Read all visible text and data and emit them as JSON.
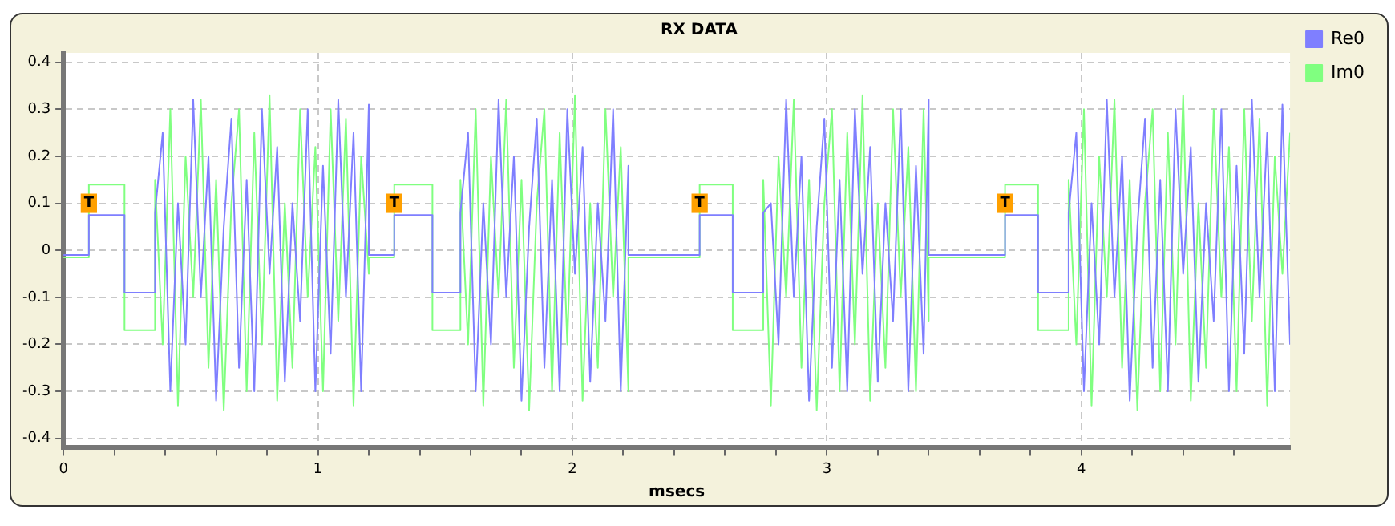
{
  "chart_data": {
    "type": "line",
    "title": "RX DATA",
    "xlabel": "msecs",
    "x": [
      0,
      0.1,
      0.1,
      0.24,
      0.24,
      0.36,
      0.36,
      0.39,
      0.42,
      0.45,
      0.48,
      0.51,
      0.54,
      0.57,
      0.6,
      0.63,
      0.66,
      0.69,
      0.72,
      0.75,
      0.78,
      0.81,
      0.84,
      0.87,
      0.9,
      0.93,
      0.96,
      0.99,
      1.02,
      1.05,
      1.08,
      1.11,
      1.14,
      1.17,
      1.2,
      1.2,
      1.3,
      1.3,
      1.45,
      1.45,
      1.56,
      1.56,
      1.59,
      1.62,
      1.65,
      1.68,
      1.71,
      1.74,
      1.77,
      1.8,
      1.83,
      1.86,
      1.89,
      1.92,
      1.95,
      1.98,
      2.01,
      2.04,
      2.07,
      2.1,
      2.13,
      2.16,
      2.19,
      2.22,
      2.22,
      2.5,
      2.5,
      2.63,
      2.63,
      2.75,
      2.75,
      2.78,
      2.81,
      2.84,
      2.87,
      2.9,
      2.93,
      2.96,
      2.99,
      3.02,
      3.05,
      3.08,
      3.11,
      3.14,
      3.17,
      3.2,
      3.23,
      3.26,
      3.29,
      3.32,
      3.35,
      3.38,
      3.4,
      3.4,
      3.7,
      3.7,
      3.83,
      3.83,
      3.95,
      3.95,
      3.98,
      4.01,
      4.04,
      4.07,
      4.1,
      4.13,
      4.16,
      4.19,
      4.22,
      4.25,
      4.28,
      4.31,
      4.34,
      4.37,
      4.4,
      4.43,
      4.46,
      4.49,
      4.52,
      4.55,
      4.58,
      4.61,
      4.64,
      4.67,
      4.7,
      4.73,
      4.76,
      4.79,
      4.82
    ],
    "series": [
      {
        "name": "Re0",
        "color": "#7f7fff",
        "values": [
          -0.01,
          -0.01,
          0.075,
          0.075,
          -0.09,
          -0.09,
          0.08,
          0.25,
          -0.3,
          0.1,
          -0.2,
          0.32,
          -0.1,
          0.2,
          -0.32,
          0.05,
          0.28,
          -0.25,
          0.15,
          -0.3,
          0.3,
          -0.05,
          0.22,
          -0.28,
          0.1,
          -0.15,
          0.3,
          -0.3,
          0.18,
          -0.22,
          0.32,
          -0.1,
          0.25,
          -0.3,
          0.31,
          -0.01,
          -0.01,
          0.075,
          0.075,
          -0.09,
          -0.09,
          0.08,
          0.25,
          -0.3,
          0.1,
          -0.2,
          0.32,
          -0.1,
          0.2,
          -0.32,
          0.05,
          0.28,
          -0.25,
          0.15,
          -0.3,
          0.3,
          -0.05,
          0.22,
          -0.28,
          0.1,
          -0.15,
          0.3,
          -0.3,
          0.18,
          -0.01,
          -0.01,
          0.075,
          0.075,
          -0.09,
          -0.09,
          0.08,
          0.1,
          -0.2,
          0.32,
          -0.1,
          0.2,
          -0.32,
          0.05,
          0.28,
          -0.25,
          0.15,
          -0.3,
          0.3,
          -0.05,
          0.22,
          -0.28,
          0.1,
          -0.15,
          0.3,
          -0.3,
          0.18,
          -0.22,
          0.32,
          -0.01,
          -0.01,
          0.075,
          0.075,
          -0.09,
          -0.09,
          0.08,
          0.25,
          -0.3,
          0.1,
          -0.2,
          0.32,
          -0.1,
          0.2,
          -0.32,
          0.05,
          0.28,
          -0.25,
          0.15,
          -0.3,
          0.3,
          -0.05,
          0.22,
          -0.28,
          0.1,
          -0.15,
          0.3,
          -0.3,
          0.18,
          -0.22,
          0.32,
          -0.1,
          0.25,
          -0.3,
          0.31,
          -0.2
        ]
      },
      {
        "name": "Im0",
        "color": "#80ff80",
        "values": [
          -0.015,
          -0.015,
          0.14,
          0.14,
          -0.17,
          -0.17,
          0.15,
          -0.2,
          0.3,
          -0.33,
          0.2,
          -0.1,
          0.32,
          -0.25,
          0.15,
          -0.34,
          0.1,
          0.3,
          -0.3,
          0.25,
          -0.2,
          0.33,
          -0.32,
          0.1,
          -0.25,
          0.3,
          -0.1,
          0.22,
          -0.3,
          0.3,
          -0.15,
          0.28,
          -0.33,
          0.2,
          -0.05,
          -0.015,
          -0.015,
          0.14,
          0.14,
          -0.17,
          -0.17,
          0.15,
          -0.2,
          0.3,
          -0.33,
          0.2,
          -0.1,
          0.32,
          -0.25,
          0.15,
          -0.34,
          0.1,
          0.3,
          -0.3,
          0.25,
          -0.2,
          0.33,
          -0.32,
          0.1,
          -0.25,
          0.3,
          -0.1,
          0.22,
          -0.3,
          -0.015,
          -0.015,
          0.14,
          0.14,
          -0.17,
          -0.17,
          0.15,
          -0.33,
          0.2,
          -0.1,
          0.32,
          -0.25,
          0.15,
          -0.34,
          0.1,
          0.3,
          -0.3,
          0.25,
          -0.2,
          0.33,
          -0.32,
          0.1,
          -0.25,
          0.3,
          -0.1,
          0.22,
          -0.3,
          0.3,
          -0.15,
          -0.015,
          -0.015,
          0.14,
          0.14,
          -0.17,
          -0.17,
          0.15,
          -0.2,
          0.3,
          -0.33,
          0.2,
          -0.1,
          0.32,
          -0.25,
          0.15,
          -0.34,
          0.1,
          0.3,
          -0.3,
          0.25,
          -0.2,
          0.33,
          -0.32,
          0.1,
          -0.25,
          0.3,
          -0.1,
          0.22,
          -0.3,
          0.3,
          -0.15,
          0.28,
          -0.33,
          0.2,
          -0.05,
          0.25
        ]
      }
    ],
    "xlim": [
      0,
      4.82
    ],
    "xticks": [
      0,
      {
        "value": 0.2,
        "label": null
      },
      {
        "value": 0.4,
        "label": null
      },
      {
        "value": 0.6,
        "label": null
      },
      {
        "value": 0.8,
        "label": null
      },
      1,
      {
        "value": 1.2,
        "label": null
      },
      {
        "value": 1.4,
        "label": null
      },
      {
        "value": 1.6,
        "label": null
      },
      {
        "value": 1.8,
        "label": null
      },
      2,
      {
        "value": 2.2,
        "label": null
      },
      {
        "value": 2.4,
        "label": null
      },
      {
        "value": 2.6,
        "label": null
      },
      {
        "value": 2.8,
        "label": null
      },
      3,
      {
        "value": 3.2,
        "label": null
      },
      {
        "value": 3.4,
        "label": null
      },
      {
        "value": 3.6,
        "label": null
      },
      {
        "value": 3.8,
        "label": null
      },
      4,
      {
        "value": 4.2,
        "label": null
      },
      {
        "value": 4.4,
        "label": null
      },
      {
        "value": 4.6,
        "label": null
      }
    ],
    "ylim": [
      -0.42,
      0.42
    ],
    "yticks": [
      -0.4,
      -0.3,
      -0.2,
      -0.1,
      0,
      0.1,
      0.2,
      0.3,
      0.4
    ],
    "grid": true,
    "legend": "top right",
    "marker": "none",
    "line_style": "solid",
    "annotations": [
      {
        "text": "T",
        "x": 0.1,
        "y": 0.1
      },
      {
        "text": "T",
        "x": 1.3,
        "y": 0.1
      },
      {
        "text": "T",
        "x": 2.5,
        "y": 0.1
      },
      {
        "text": "T",
        "x": 3.7,
        "y": 0.1
      }
    ]
  }
}
